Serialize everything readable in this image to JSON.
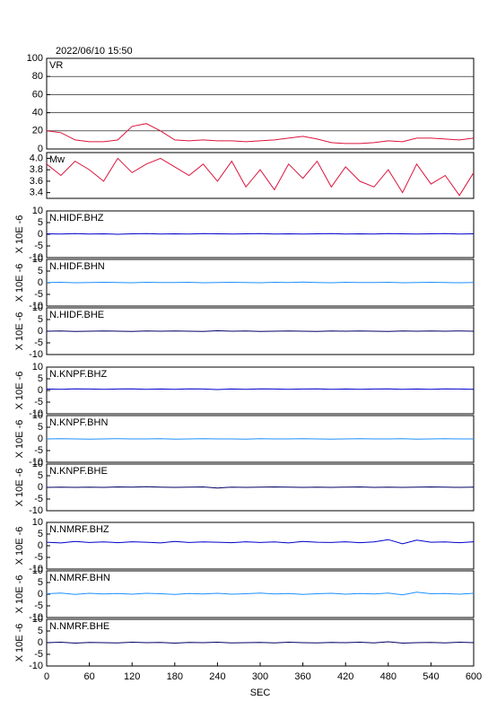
{
  "chart_data": [
    {
      "type": "line",
      "title": "2022/06/10 15:50",
      "x": [
        0,
        20,
        40,
        60,
        80,
        100,
        120,
        140,
        160,
        180,
        200,
        220,
        240,
        260,
        280,
        300,
        320,
        340,
        360,
        380,
        400,
        420,
        440,
        460,
        480,
        500,
        520,
        540,
        560,
        580,
        600
      ],
      "xlim": [
        0,
        600
      ],
      "ylim": [
        0,
        100
      ],
      "yticks": [
        0,
        20,
        40,
        60,
        80,
        100
      ],
      "grid": true,
      "series": [
        {
          "name": "VR",
          "color": "#dc143c",
          "values": [
            20,
            18,
            10,
            8,
            8,
            10,
            25,
            28,
            20,
            10,
            9,
            10,
            9,
            9,
            8,
            9,
            10,
            12,
            14,
            11,
            7,
            6,
            6,
            7,
            9,
            8,
            12,
            12,
            11,
            10,
            12
          ]
        }
      ]
    },
    {
      "type": "line",
      "x": [
        0,
        20,
        40,
        60,
        80,
        100,
        120,
        140,
        160,
        180,
        200,
        220,
        240,
        260,
        280,
        300,
        320,
        340,
        360,
        380,
        400,
        420,
        440,
        460,
        480,
        500,
        520,
        540,
        560,
        580,
        600
      ],
      "xlim": [
        0,
        600
      ],
      "ylim": [
        3.3,
        4.1
      ],
      "yticks": [
        3.4,
        3.6,
        3.8,
        {
          "value": 4,
          "label": "4.0"
        }
      ],
      "grid": false,
      "series": [
        {
          "name": "Mw",
          "color": "#dc143c",
          "values": [
            3.9,
            3.7,
            3.95,
            3.8,
            3.6,
            4.0,
            3.75,
            3.9,
            4.0,
            3.85,
            3.7,
            3.9,
            3.6,
            3.95,
            3.5,
            3.8,
            3.45,
            3.9,
            3.65,
            3.95,
            3.5,
            3.85,
            3.6,
            3.5,
            3.8,
            3.4,
            3.9,
            3.55,
            3.7,
            3.35,
            3.75
          ]
        }
      ]
    },
    {
      "type": "line",
      "ylabel": "X 10E -6",
      "x": [
        0,
        20,
        40,
        60,
        80,
        100,
        120,
        140,
        160,
        180,
        200,
        220,
        240,
        260,
        280,
        300,
        320,
        340,
        360,
        380,
        400,
        420,
        440,
        460,
        480,
        500,
        520,
        540,
        560,
        580,
        600
      ],
      "xlim": [
        0,
        600
      ],
      "ylim": [
        -10,
        10
      ],
      "yticks": [
        -10,
        -5,
        0,
        5,
        10
      ],
      "grid": false,
      "series": [
        {
          "name": "N.HIDF.BHZ",
          "color": "#0000cc",
          "values": [
            0.2,
            0.1,
            0.3,
            0.1,
            0.2,
            0.0,
            0.2,
            0.3,
            0.1,
            0.2,
            0.1,
            0.3,
            0.2,
            0.1,
            0.2,
            0.3,
            0.1,
            0.2,
            0.1,
            0.2,
            0.3,
            0.1,
            0.2,
            0.1,
            0.3,
            0.2,
            0.1,
            0.2,
            0.3,
            0.1,
            0.2
          ]
        }
      ]
    },
    {
      "type": "line",
      "ylabel": "X 10E -6",
      "x": [
        0,
        20,
        40,
        60,
        80,
        100,
        120,
        140,
        160,
        180,
        200,
        220,
        240,
        260,
        280,
        300,
        320,
        340,
        360,
        380,
        400,
        420,
        440,
        460,
        480,
        500,
        520,
        540,
        560,
        580,
        600
      ],
      "xlim": [
        0,
        600
      ],
      "ylim": [
        -10,
        10
      ],
      "yticks": [
        -10,
        -5,
        0,
        5,
        10
      ],
      "grid": false,
      "series": [
        {
          "name": "N.HIDF.BHN",
          "color": "#1e90ff",
          "values": [
            0.1,
            0.2,
            0.0,
            0.1,
            0.2,
            0.1,
            0.0,
            0.2,
            0.1,
            0.1,
            0.2,
            0.0,
            0.1,
            0.2,
            0.1,
            0.0,
            0.2,
            0.1,
            0.3,
            0.1,
            0.0,
            0.2,
            0.1,
            0.1,
            0.2,
            0.0,
            0.1,
            0.2,
            0.1,
            0.0,
            0.1
          ]
        }
      ]
    },
    {
      "type": "line",
      "ylabel": "X 10E -6",
      "x": [
        0,
        20,
        40,
        60,
        80,
        100,
        120,
        140,
        160,
        180,
        200,
        220,
        240,
        260,
        280,
        300,
        320,
        340,
        360,
        380,
        400,
        420,
        440,
        460,
        480,
        500,
        520,
        540,
        560,
        580,
        600
      ],
      "xlim": [
        0,
        600
      ],
      "ylim": [
        -10,
        10
      ],
      "yticks": [
        -10,
        -5,
        0,
        5,
        10
      ],
      "grid": false,
      "series": [
        {
          "name": "N.HIDF.BHE",
          "color": "#000066",
          "values": [
            0.0,
            0.1,
            -0.1,
            0.0,
            0.1,
            0.0,
            -0.1,
            0.1,
            0.0,
            0.1,
            0.0,
            -0.1,
            0.2,
            0.0,
            0.1,
            -0.1,
            0.0,
            0.1,
            0.0,
            -0.1,
            0.1,
            0.0,
            0.1,
            0.0,
            -0.1,
            0.1,
            0.0,
            0.1,
            0.0,
            0.1,
            0.0
          ]
        }
      ]
    },
    {
      "type": "line",
      "ylabel": "X 10E -6",
      "x": [
        0,
        20,
        40,
        60,
        80,
        100,
        120,
        140,
        160,
        180,
        200,
        220,
        240,
        260,
        280,
        300,
        320,
        340,
        360,
        380,
        400,
        420,
        440,
        460,
        480,
        500,
        520,
        540,
        560,
        580,
        600
      ],
      "xlim": [
        0,
        600
      ],
      "ylim": [
        -10,
        10
      ],
      "yticks": [
        -10,
        -5,
        0,
        5,
        10
      ],
      "grid": false,
      "series": [
        {
          "name": "N.KNPF.BHZ",
          "color": "#0000cc",
          "values": [
            0.6,
            0.5,
            0.7,
            0.6,
            0.5,
            0.6,
            0.7,
            0.5,
            0.6,
            0.5,
            0.7,
            0.6,
            0.4,
            0.6,
            0.5,
            0.7,
            0.6,
            0.5,
            0.6,
            0.7,
            0.5,
            0.6,
            0.5,
            0.6,
            0.7,
            0.5,
            0.6,
            0.5,
            0.7,
            0.6,
            0.5
          ]
        }
      ]
    },
    {
      "type": "line",
      "ylabel": "X 10E -6",
      "x": [
        0,
        20,
        40,
        60,
        80,
        100,
        120,
        140,
        160,
        180,
        200,
        220,
        240,
        260,
        280,
        300,
        320,
        340,
        360,
        380,
        400,
        420,
        440,
        460,
        480,
        500,
        520,
        540,
        560,
        580,
        600
      ],
      "xlim": [
        0,
        600
      ],
      "ylim": [
        -10,
        10
      ],
      "yticks": [
        -10,
        -5,
        0,
        5,
        10
      ],
      "grid": false,
      "series": [
        {
          "name": "N.KNPF.BHN",
          "color": "#1e90ff",
          "values": [
            0.0,
            0.1,
            0.0,
            -0.1,
            0.0,
            0.1,
            0.0,
            0.0,
            0.1,
            -0.1,
            0.0,
            0.1,
            0.0,
            0.0,
            -0.1,
            0.1,
            0.0,
            0.0,
            0.1,
            0.0,
            -0.1,
            0.0,
            0.1,
            0.0,
            0.0,
            0.1,
            -0.1,
            0.0,
            0.1,
            0.0,
            0.0
          ]
        }
      ]
    },
    {
      "type": "line",
      "ylabel": "X 10E -6",
      "x": [
        0,
        20,
        40,
        60,
        80,
        100,
        120,
        140,
        160,
        180,
        200,
        220,
        240,
        260,
        280,
        300,
        320,
        340,
        360,
        380,
        400,
        420,
        440,
        460,
        480,
        500,
        520,
        540,
        560,
        580,
        600
      ],
      "xlim": [
        0,
        600
      ],
      "ylim": [
        -10,
        10
      ],
      "yticks": [
        -10,
        -5,
        0,
        5,
        10
      ],
      "grid": false,
      "series": [
        {
          "name": "N.KNPF.BHE",
          "color": "#000066",
          "values": [
            0.0,
            0.1,
            0.0,
            0.1,
            0.0,
            0.2,
            0.1,
            0.3,
            0.1,
            0.0,
            0.1,
            0.2,
            -0.3,
            0.1,
            0.0,
            0.1,
            0.2,
            0.1,
            0.0,
            0.1,
            0.0,
            0.1,
            0.2,
            0.0,
            0.1,
            0.0,
            0.1,
            0.2,
            0.1,
            0.0,
            0.1
          ]
        }
      ]
    },
    {
      "type": "line",
      "ylabel": "X 10E -6",
      "x": [
        0,
        20,
        40,
        60,
        80,
        100,
        120,
        140,
        160,
        180,
        200,
        220,
        240,
        260,
        280,
        300,
        320,
        340,
        360,
        380,
        400,
        420,
        440,
        460,
        480,
        500,
        520,
        540,
        560,
        580,
        600
      ],
      "xlim": [
        0,
        600
      ],
      "ylim": [
        -10,
        10
      ],
      "yticks": [
        -10,
        -5,
        0,
        5,
        10
      ],
      "grid": false,
      "series": [
        {
          "name": "N.NMRF.BHZ",
          "color": "#0000cc",
          "values": [
            1.5,
            1.2,
            1.8,
            1.4,
            1.6,
            1.3,
            1.7,
            1.5,
            1.2,
            1.8,
            1.4,
            1.6,
            1.5,
            1.3,
            1.7,
            1.4,
            1.6,
            1.2,
            1.8,
            1.5,
            1.4,
            1.7,
            1.3,
            1.6,
            2.6,
            0.8,
            2.4,
            1.5,
            1.6,
            1.3,
            1.7
          ]
        }
      ]
    },
    {
      "type": "line",
      "ylabel": "X 10E -6",
      "x": [
        0,
        20,
        40,
        60,
        80,
        100,
        120,
        140,
        160,
        180,
        200,
        220,
        240,
        260,
        280,
        300,
        320,
        340,
        360,
        380,
        400,
        420,
        440,
        460,
        480,
        500,
        520,
        540,
        560,
        580,
        600
      ],
      "xlim": [
        0,
        600
      ],
      "ylim": [
        -10,
        10
      ],
      "yticks": [
        -10,
        -5,
        0,
        5,
        10
      ],
      "grid": false,
      "series": [
        {
          "name": "N.NMRF.BHN",
          "color": "#1e90ff",
          "values": [
            0.2,
            0.5,
            -0.1,
            0.4,
            0.1,
            0.3,
            0.0,
            0.4,
            0.2,
            -0.1,
            0.3,
            0.1,
            0.4,
            0.0,
            0.2,
            0.5,
            0.1,
            0.3,
            -0.1,
            0.2,
            0.4,
            0.0,
            0.3,
            0.1,
            0.5,
            -0.3,
            0.9,
            0.2,
            0.3,
            0.0,
            0.4
          ]
        }
      ]
    },
    {
      "type": "line",
      "ylabel": "X 10E -6",
      "xlabel": "SEC",
      "x": [
        0,
        20,
        40,
        60,
        80,
        100,
        120,
        140,
        160,
        180,
        200,
        220,
        240,
        260,
        280,
        300,
        320,
        340,
        360,
        380,
        400,
        420,
        440,
        460,
        480,
        500,
        520,
        540,
        560,
        580,
        600
      ],
      "xlim": [
        0,
        600
      ],
      "ylim": [
        -10,
        10
      ],
      "yticks": [
        -10,
        -5,
        0,
        5,
        10
      ],
      "xticks": [
        0,
        60,
        120,
        180,
        240,
        300,
        360,
        420,
        480,
        540,
        600
      ],
      "grid": false,
      "series": [
        {
          "name": "N.NMRF.BHE",
          "color": "#000066",
          "values": [
            0.0,
            0.2,
            -0.2,
            0.1,
            0.0,
            -0.1,
            0.2,
            0.0,
            0.1,
            -0.2,
            0.1,
            0.0,
            0.2,
            -0.1,
            0.0,
            0.1,
            -0.1,
            0.2,
            0.0,
            -0.1,
            0.1,
            0.0,
            0.2,
            -0.1,
            0.4,
            -0.2,
            0.0,
            0.1,
            -0.1,
            0.2,
            0.0
          ]
        }
      ]
    }
  ]
}
